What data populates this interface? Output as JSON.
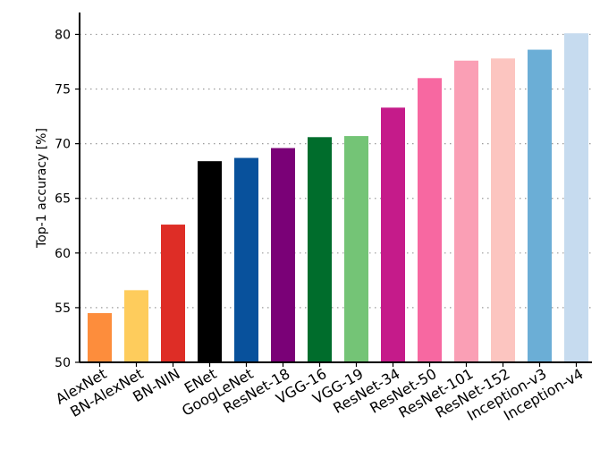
{
  "chart_data": {
    "type": "bar",
    "title": "",
    "xlabel": "",
    "ylabel": "Top-1 accuracy [%]",
    "ylim": [
      50,
      82
    ],
    "yticks": [
      50,
      55,
      60,
      65,
      70,
      75,
      80
    ],
    "grid": "horizontal dotted",
    "categories": [
      "AlexNet",
      "BN-AlexNet",
      "BN-NIN",
      "ENet",
      "GoogLeNet",
      "ResNet-18",
      "VGG-16",
      "VGG-19",
      "ResNet-34",
      "ResNet-50",
      "ResNet-101",
      "ResNet-152",
      "Inception-v3",
      "Inception-v4"
    ],
    "values": [
      54.5,
      56.6,
      62.6,
      68.4,
      68.7,
      69.6,
      70.6,
      70.7,
      73.3,
      76.0,
      77.6,
      77.8,
      78.6,
      80.1
    ],
    "colors": [
      "#fd8d3c",
      "#fecc5c",
      "#de2d26",
      "#000000",
      "#08519c",
      "#7a0177",
      "#006d2c",
      "#74c476",
      "#c51b8a",
      "#f768a1",
      "#fa9fb5",
      "#fcc5c0",
      "#6baed6",
      "#c6dbef"
    ]
  }
}
